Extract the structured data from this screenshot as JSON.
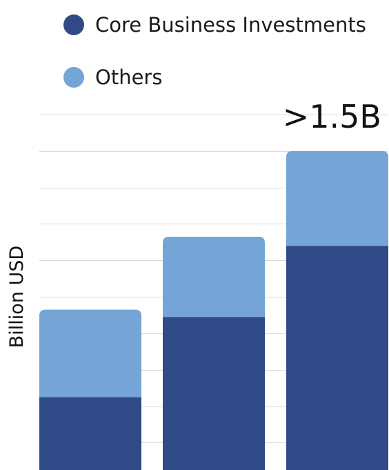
{
  "chart_data": {
    "type": "bar",
    "stacked": true,
    "categories": [
      "",
      "",
      ""
    ],
    "series": [
      {
        "name": "Core Business Investments",
        "color": "#2f4a86",
        "values": [
          0.4,
          0.84,
          1.23
        ]
      },
      {
        "name": "Others",
        "color": "#74a5d6",
        "values": [
          0.48,
          0.44,
          0.52
        ]
      }
    ],
    "title": "",
    "xlabel": "",
    "ylabel": "Billion USD",
    "ylim": [
      0,
      1.95
    ],
    "grid": true,
    "legend_position": "top",
    "annotations": [
      {
        "text": ">1.5B",
        "category_index": 2
      }
    ]
  }
}
